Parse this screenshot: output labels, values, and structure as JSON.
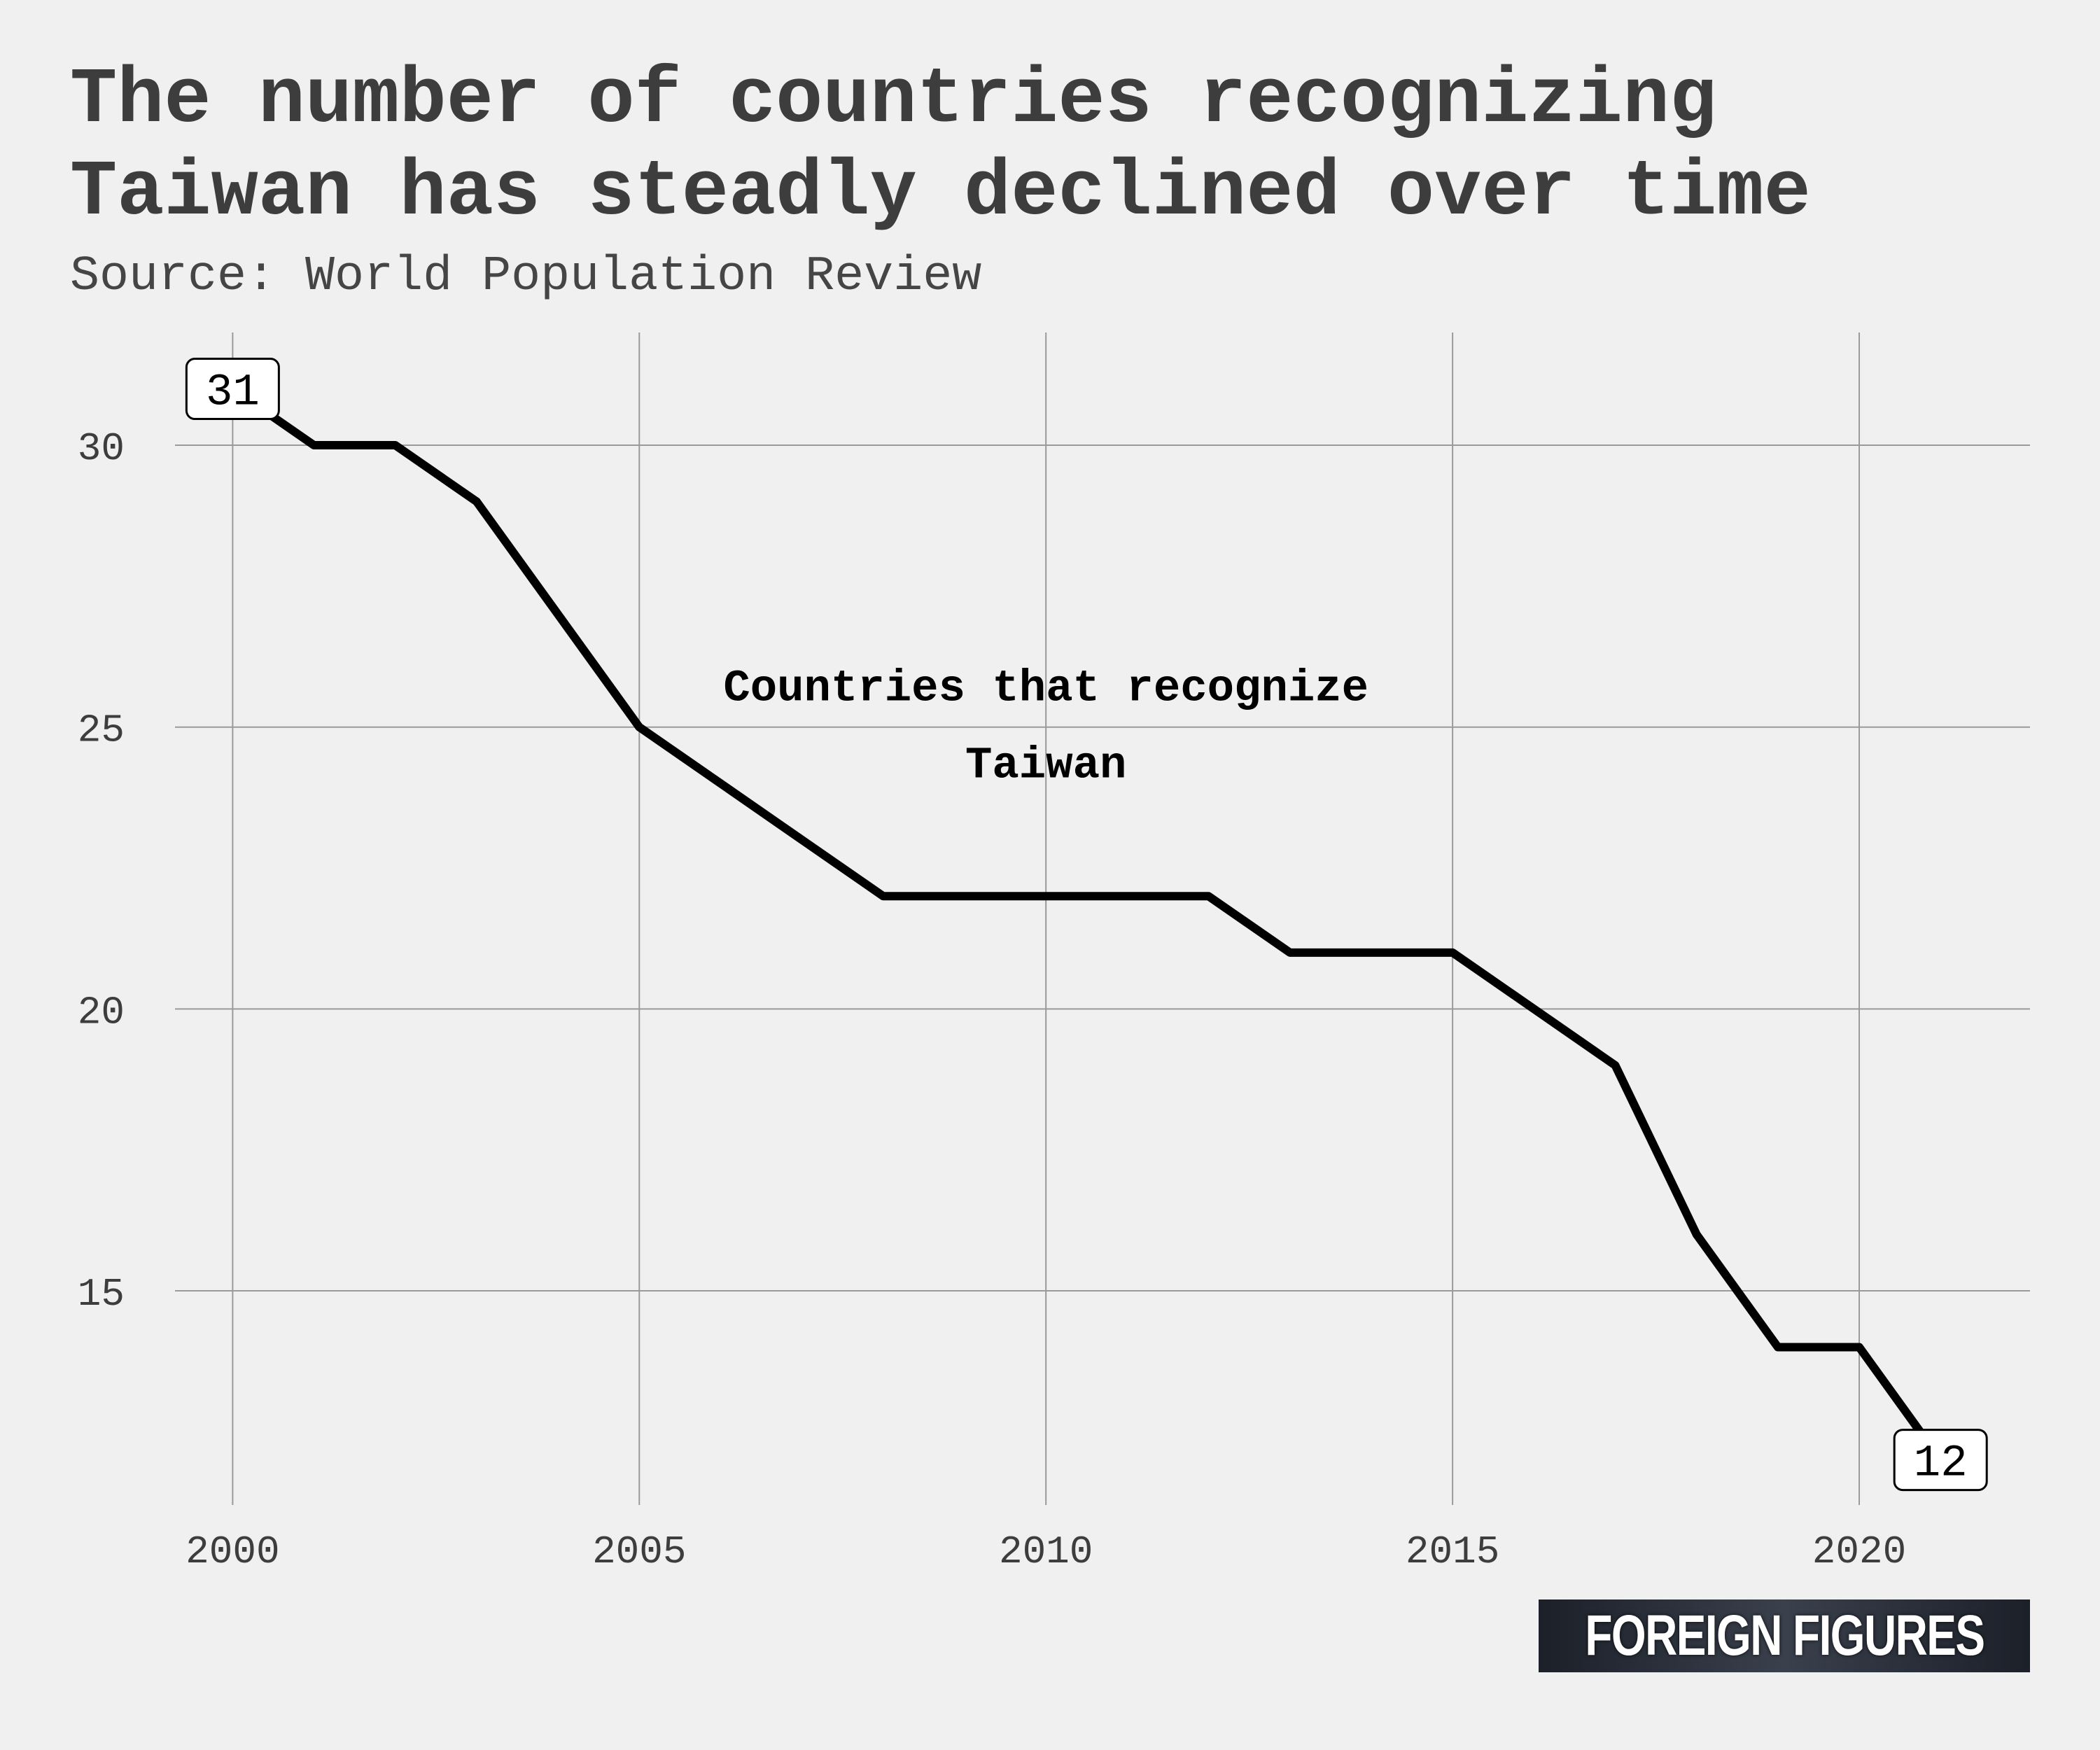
{
  "title_lines": [
    "The number of countries recognizing",
    "Taiwan has steadly declined over time"
  ],
  "subtitle": "Source: World Population Review",
  "logo": "FOREIGN FIGURES",
  "colors": {
    "background": "#f0f0f0",
    "line": "#000000",
    "grid": "#9a9a9a",
    "text": "#3d3d3d"
  },
  "chart_data": {
    "type": "line",
    "x": [
      2000,
      2001,
      2002,
      2003,
      2004,
      2005,
      2006,
      2007,
      2008,
      2009,
      2010,
      2011,
      2012,
      2013,
      2014,
      2015,
      2016,
      2017,
      2018,
      2019,
      2020,
      2021
    ],
    "series": [
      {
        "name": "Countries that recognize Taiwan",
        "values": [
          31,
          30,
          30,
          29,
          27,
          25,
          24,
          23,
          22,
          22,
          22,
          22,
          22,
          21,
          21,
          21,
          20,
          19,
          16,
          14,
          14,
          12
        ]
      }
    ],
    "series_label_lines": [
      "Countries that recognize",
      "Taiwan"
    ],
    "xlim": [
      1998,
      2022.1
    ],
    "ylim": [
      11.2,
      32
    ],
    "xticks": [
      2000,
      2005,
      2010,
      2015,
      2020
    ],
    "yticks": [
      15,
      20,
      25,
      30
    ],
    "grid": true,
    "point_labels": [
      {
        "x": 2000,
        "y": 31,
        "text": "31"
      },
      {
        "x": 2021,
        "y": 12,
        "text": "12"
      }
    ],
    "xlabel": "",
    "ylabel": ""
  }
}
